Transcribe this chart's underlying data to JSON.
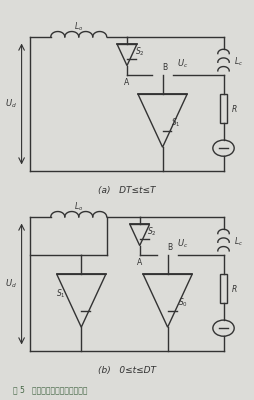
{
  "bg_color": "#dcdcd8",
  "title_a": "(a)   DT≤t≤T",
  "title_b": "(b)   0≤t≤DT",
  "fig_caption": "图 5   运行于第一象限等效电路图",
  "line_color": "#333333",
  "lw": 1.0
}
